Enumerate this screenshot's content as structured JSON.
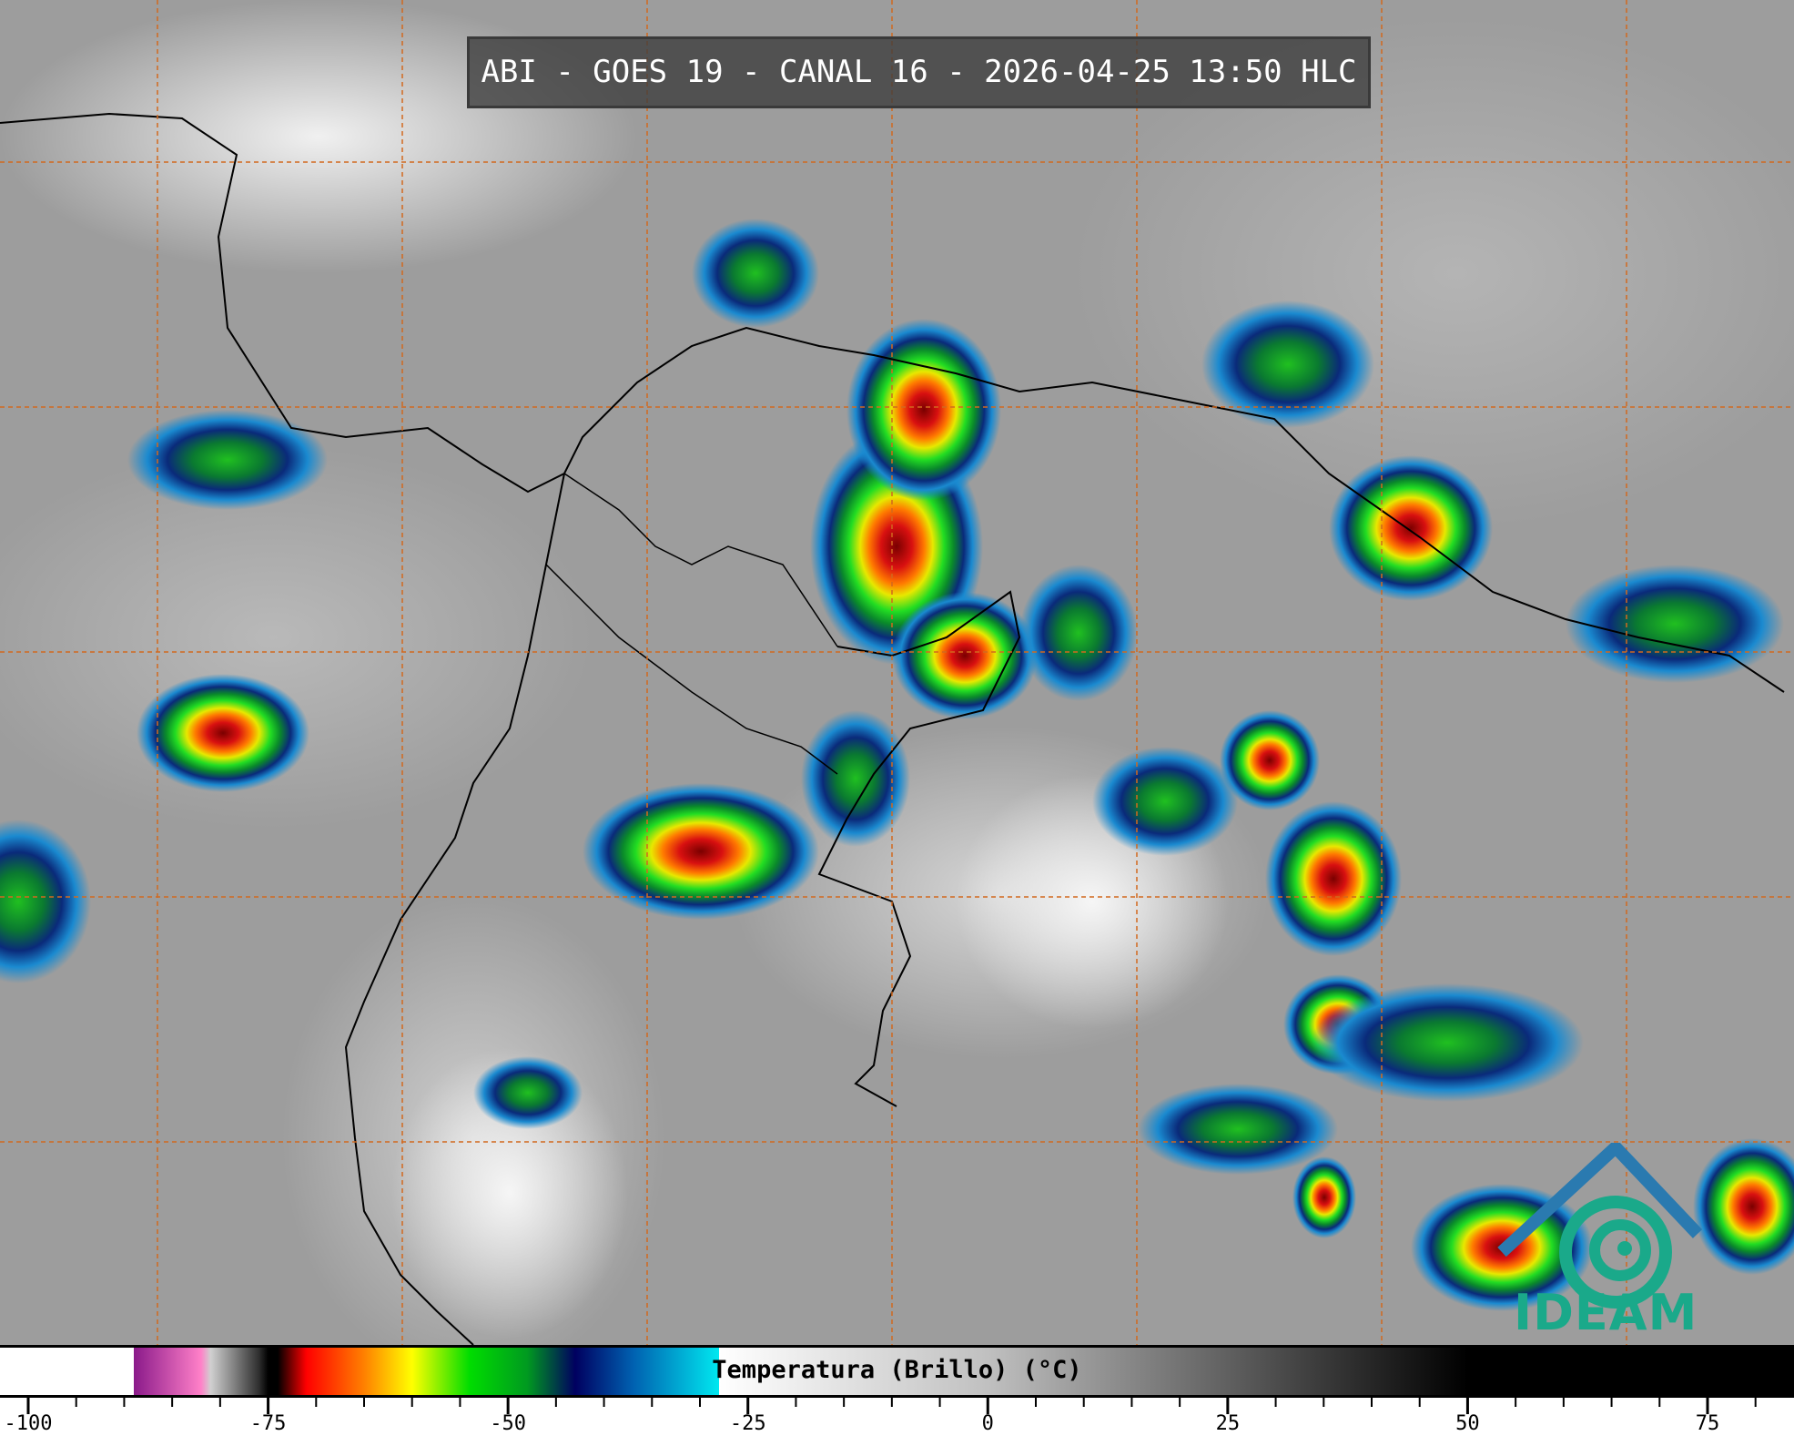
{
  "title": "ABI - GOES 19 - CANAL 16 - 2026-04-25 13:50 HLC",
  "colorbar": {
    "label": "Temperatura (Brillo) (°C)",
    "range": [
      -100,
      75
    ],
    "major_ticks": [
      "-100",
      "-75",
      "-50",
      "-25",
      "0",
      "25",
      "50",
      "75"
    ],
    "minor_step": 5,
    "colors": {
      "white": "#ffffff",
      "purple": "#8a1a8a",
      "pink": "#ff80c8",
      "red": "#ff0000",
      "orange": "#ff8000",
      "yellow": "#ffff00",
      "green": "#00dd00",
      "navy": "#000060",
      "cyan": "#00e8f0",
      "black": "#000000"
    }
  },
  "grid_color": "#d2691e",
  "logo": {
    "text": "IDEAM",
    "color": "#1aa98a",
    "roof_color": "#2a7ab0"
  }
}
